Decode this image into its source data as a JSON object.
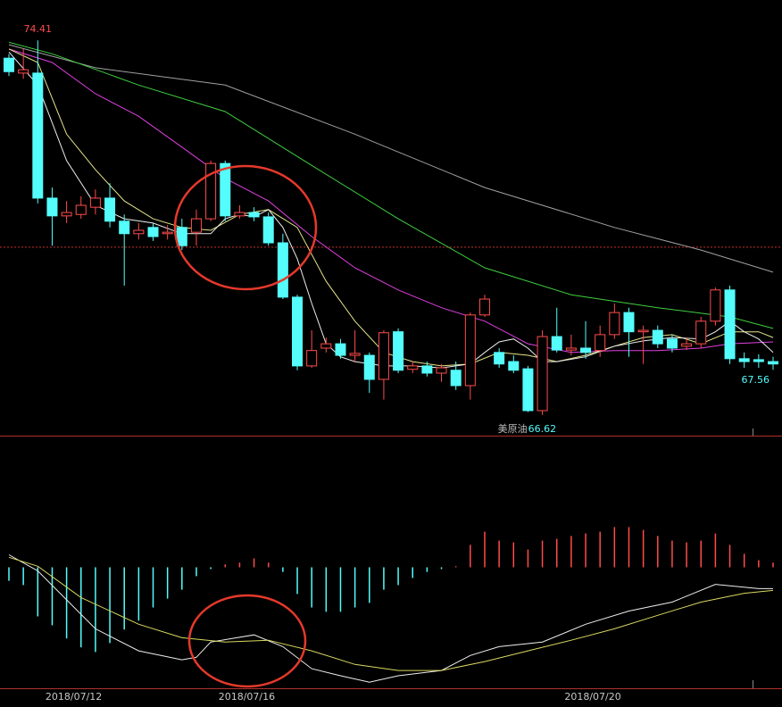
{
  "chart_data": [
    {
      "type": "candlestick",
      "open": [
        74.04,
        73.73,
        73.73,
        71.13,
        70.76,
        70.79,
        70.94,
        71.13,
        70.65,
        70.39,
        70.52,
        70.39,
        70.52,
        70.42,
        70.7,
        71.85,
        70.76,
        70.83,
        70.74,
        70.2,
        69.07,
        67.64,
        68.01,
        68.1,
        67.86,
        67.86,
        67.36,
        68.35,
        67.57,
        67.64,
        67.49,
        67.55,
        67.23,
        68.7,
        67.92,
        67.73,
        67.58,
        66.71,
        68.25,
        67.97,
        68.01,
        67.96,
        68.29,
        68.75,
        68.35,
        68.38,
        68.2,
        68.05,
        68.1,
        68.57,
        69.22,
        67.79,
        67.77,
        67.73
      ],
      "close": [
        73.76,
        73.8,
        71.13,
        70.76,
        70.83,
        70.98,
        71.13,
        70.65,
        70.39,
        70.46,
        70.33,
        70.42,
        70.14,
        70.7,
        71.85,
        70.76,
        70.83,
        70.74,
        70.2,
        69.07,
        67.64,
        67.96,
        68.1,
        67.86,
        67.9,
        67.36,
        68.33,
        67.55,
        67.64,
        67.49,
        67.6,
        67.23,
        68.7,
        69.03,
        67.68,
        67.55,
        66.71,
        68.25,
        67.97,
        68.01,
        67.92,
        68.29,
        68.75,
        68.35,
        68.38,
        68.1,
        68.01,
        68.1,
        68.57,
        69.22,
        67.79,
        67.73,
        67.73,
        67.68
      ],
      "high": [
        74.13,
        74.23,
        74.41,
        71.35,
        71.07,
        71.17,
        71.31,
        71.44,
        70.79,
        70.61,
        70.61,
        70.57,
        70.7,
        70.89,
        71.91,
        71.91,
        70.98,
        70.94,
        70.83,
        70.39,
        69.12,
        68.38,
        68.23,
        68.2,
        68.38,
        67.92,
        68.38,
        68.42,
        67.73,
        67.73,
        67.68,
        67.73,
        68.75,
        69.12,
        68.01,
        67.86,
        67.64,
        68.38,
        68.85,
        68.29,
        68.57,
        68.48,
        68.94,
        68.85,
        68.48,
        68.48,
        68.29,
        68.23,
        68.66,
        69.27,
        69.31,
        67.92,
        67.88,
        67.83
      ],
      "low": [
        73.67,
        73.61,
        71.02,
        70.14,
        70.61,
        70.7,
        70.79,
        70.52,
        69.31,
        70.27,
        70.24,
        70.27,
        70.05,
        70.14,
        70.65,
        70.65,
        70.7,
        70.65,
        70.14,
        69.03,
        67.55,
        67.6,
        67.92,
        67.79,
        67.73,
        67.08,
        66.94,
        67.49,
        67.49,
        67.42,
        67.31,
        67.14,
        66.94,
        68.66,
        67.6,
        67.49,
        66.68,
        66.62,
        67.92,
        67.86,
        67.79,
        67.83,
        68.2,
        67.83,
        67.68,
        68.01,
        67.92,
        67.97,
        68.01,
        68.48,
        67.68,
        67.6,
        67.6,
        67.56
      ],
      "up_color": "#ff4c4c",
      "down_color": "#54fcfc",
      "ylim": [
        66.19,
        75.25
      ],
      "reference_line": 70.11,
      "reference_color": "#c8302a",
      "symbol": "美原油",
      "lines": [
        {
          "color": "#a0a0a0",
          "x": [
            0,
            6,
            15,
            24,
            33,
            42,
            48,
            53
          ],
          "values": [
            74.32,
            73.84,
            73.48,
            72.46,
            71.35,
            70.52,
            70.05,
            69.59
          ]
        },
        {
          "color": "#3fcf3f",
          "x": [
            0,
            3,
            9,
            15,
            21,
            27,
            33,
            39,
            45,
            50,
            53
          ],
          "values": [
            74.37,
            74.13,
            73.48,
            72.93,
            71.81,
            70.7,
            69.68,
            69.12,
            68.85,
            68.66,
            68.42
          ]
        },
        {
          "color": "#e040e0",
          "x": [
            0,
            3,
            6,
            9,
            12,
            15,
            18,
            21,
            24,
            27,
            30,
            33,
            36,
            39,
            42,
            45,
            48,
            50,
            53
          ],
          "values": [
            74.23,
            73.95,
            73.3,
            72.83,
            72.19,
            71.54,
            71.07,
            70.33,
            69.68,
            69.22,
            68.85,
            68.57,
            68.1,
            67.92,
            67.96,
            67.96,
            68.01,
            68.1,
            68.14
          ]
        },
        {
          "color": "#e6e68a",
          "x": [
            0,
            2,
            4,
            6,
            8,
            10,
            12,
            14,
            16,
            18,
            20,
            22,
            24,
            26,
            28,
            30,
            32,
            34,
            36,
            38,
            40,
            42,
            44,
            46,
            48,
            50,
            52,
            53
          ],
          "values": [
            74.23,
            73.95,
            72.46,
            71.72,
            71.07,
            70.7,
            70.52,
            70.46,
            70.79,
            70.89,
            70.52,
            69.4,
            68.57,
            67.92,
            67.73,
            67.64,
            67.68,
            67.92,
            67.86,
            67.73,
            67.86,
            68.05,
            68.23,
            68.29,
            68.1,
            68.35,
            68.35,
            68.23
          ]
        },
        {
          "color": "#eeeeee",
          "x": [
            0,
            2,
            4,
            6,
            8,
            10,
            12,
            14,
            15,
            16,
            17,
            18,
            19,
            20,
            21,
            22,
            23,
            24,
            26,
            28,
            30,
            32,
            33,
            34,
            35,
            36,
            37,
            38,
            40,
            42,
            44,
            46,
            48,
            49,
            50,
            51,
            52,
            53
          ],
          "values": [
            74.17,
            73.48,
            71.91,
            70.98,
            70.7,
            70.61,
            70.39,
            70.39,
            70.7,
            70.79,
            70.74,
            70.89,
            70.52,
            69.87,
            68.94,
            68.1,
            67.83,
            67.73,
            67.64,
            67.64,
            67.6,
            67.68,
            67.92,
            68.14,
            68.2,
            68.01,
            67.73,
            67.73,
            67.83,
            68.05,
            68.16,
            68.23,
            68.2,
            68.35,
            68.57,
            68.35,
            68.2,
            67.92
          ]
        }
      ]
    },
    {
      "type": "macd",
      "categories": [
        null,
        null,
        null,
        null,
        "2018/07/12",
        null,
        null,
        null,
        null,
        null,
        null,
        null,
        null,
        null,
        null,
        null,
        "2018/07/16",
        null,
        null,
        null,
        null,
        null,
        null,
        null,
        null,
        null,
        null,
        null,
        null,
        null,
        null,
        null,
        null,
        null,
        null,
        null,
        null,
        null,
        null,
        null,
        "2018/07/20",
        null,
        null,
        null,
        null,
        null,
        null,
        null,
        null,
        null,
        null,
        null,
        null,
        null
      ],
      "values": [
        -0.038,
        -0.05,
        -0.138,
        -0.163,
        -0.2,
        -0.225,
        -0.238,
        -0.213,
        -0.175,
        -0.15,
        -0.113,
        -0.088,
        -0.063,
        -0.025,
        -0.005,
        0.008,
        0.013,
        0.025,
        0.013,
        -0.013,
        -0.075,
        -0.113,
        -0.125,
        -0.125,
        -0.113,
        -0.1,
        -0.063,
        -0.05,
        -0.03,
        -0.013,
        -0.005,
        0.003,
        0.063,
        0.1,
        0.075,
        0.07,
        0.05,
        0.075,
        0.08,
        0.088,
        0.095,
        0.1,
        0.113,
        0.113,
        0.105,
        0.088,
        0.075,
        0.07,
        0.075,
        0.095,
        0.063,
        0.038,
        0.02,
        0.013
      ],
      "up_color": "#ff4c4c",
      "down_color": "#54fcfc",
      "ylim": [
        -0.34,
        0.365
      ],
      "lines": [
        {
          "color": "#eeeeee",
          "x": [
            0,
            2,
            6,
            9,
            12,
            13,
            14,
            17,
            19,
            21,
            23,
            25,
            27,
            30,
            32,
            34,
            37,
            40,
            43,
            46,
            49,
            52,
            53
          ],
          "values": [
            0.035,
            -0.01,
            -0.173,
            -0.235,
            -0.26,
            -0.253,
            -0.21,
            -0.19,
            -0.223,
            -0.285,
            -0.305,
            -0.323,
            -0.305,
            -0.29,
            -0.248,
            -0.223,
            -0.21,
            -0.16,
            -0.123,
            -0.098,
            -0.048,
            -0.06,
            -0.06
          ]
        },
        {
          "color": "#d8d860",
          "x": [
            0,
            2,
            5,
            9,
            12,
            15,
            18,
            21,
            24,
            27,
            30,
            33,
            36,
            39,
            42,
            45,
            48,
            51,
            53
          ],
          "values": [
            0.028,
            0.003,
            -0.085,
            -0.16,
            -0.198,
            -0.21,
            -0.205,
            -0.235,
            -0.273,
            -0.29,
            -0.29,
            -0.265,
            -0.235,
            -0.205,
            -0.173,
            -0.135,
            -0.098,
            -0.073,
            -0.065
          ]
        }
      ]
    }
  ]
}
